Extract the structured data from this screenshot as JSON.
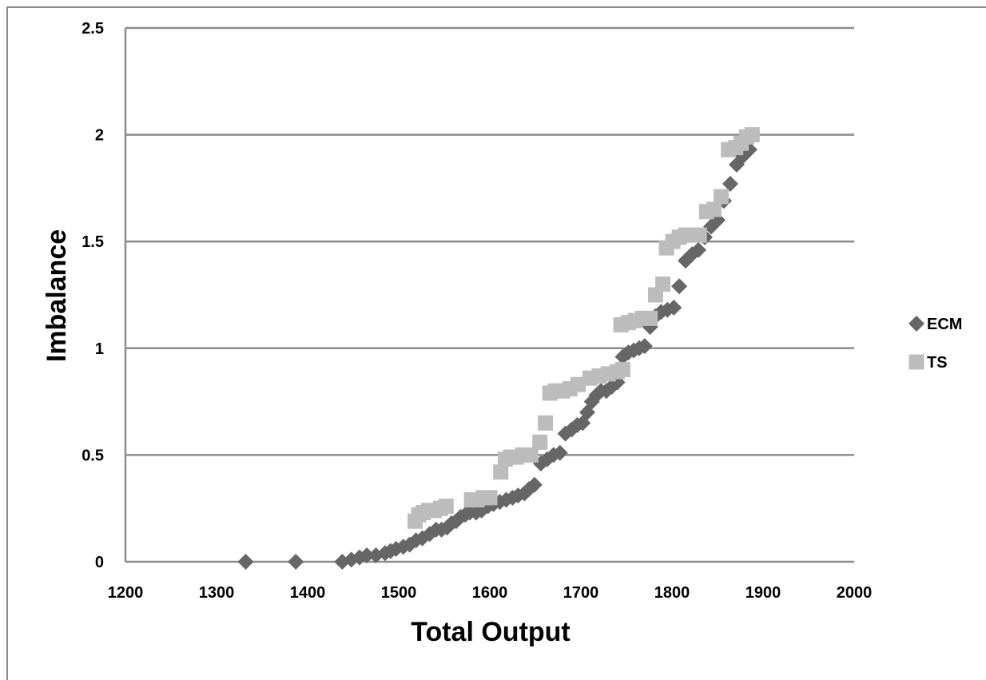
{
  "chart_data": {
    "type": "scatter",
    "title": "",
    "xlabel": "Total Output",
    "ylabel": "Imbalance",
    "xlim": [
      1200,
      2000
    ],
    "ylim": [
      0,
      2.5
    ],
    "x_ticks": [
      "1200",
      "1300",
      "1400",
      "1500",
      "1600",
      "1700",
      "1800",
      "1900",
      "2000"
    ],
    "y_ticks": [
      "0",
      "0.5",
      "1",
      "1.5",
      "2",
      "2.5"
    ],
    "grid": "horizontal",
    "legend_position": "right",
    "series": [
      {
        "name": "ECM",
        "marker": "diamond",
        "color": "#666666",
        "points": [
          [
            1332,
            0
          ],
          [
            1387,
            0
          ],
          [
            1438,
            0
          ],
          [
            1448,
            0.01
          ],
          [
            1457,
            0.02
          ],
          [
            1465,
            0.03
          ],
          [
            1475,
            0.03
          ],
          [
            1485,
            0.04
          ],
          [
            1491,
            0.05
          ],
          [
            1497,
            0.06
          ],
          [
            1505,
            0.07
          ],
          [
            1512,
            0.08
          ],
          [
            1519,
            0.1
          ],
          [
            1526,
            0.11
          ],
          [
            1534,
            0.13
          ],
          [
            1541,
            0.15
          ],
          [
            1547,
            0.15
          ],
          [
            1553,
            0.16
          ],
          [
            1558,
            0.18
          ],
          [
            1563,
            0.19
          ],
          [
            1568,
            0.21
          ],
          [
            1573,
            0.22
          ],
          [
            1578,
            0.23
          ],
          [
            1585,
            0.23
          ],
          [
            1591,
            0.24
          ],
          [
            1598,
            0.26
          ],
          [
            1604,
            0.27
          ],
          [
            1611,
            0.28
          ],
          [
            1618,
            0.29
          ],
          [
            1625,
            0.3
          ],
          [
            1631,
            0.31
          ],
          [
            1638,
            0.32
          ],
          [
            1643,
            0.34
          ],
          [
            1649,
            0.36
          ],
          [
            1656,
            0.46
          ],
          [
            1663,
            0.48
          ],
          [
            1670,
            0.5
          ],
          [
            1677,
            0.51
          ],
          [
            1683,
            0.6
          ],
          [
            1690,
            0.62
          ],
          [
            1696,
            0.64
          ],
          [
            1702,
            0.65
          ],
          [
            1707,
            0.7
          ],
          [
            1712,
            0.75
          ],
          [
            1717,
            0.78
          ],
          [
            1722,
            0.8
          ],
          [
            1728,
            0.8
          ],
          [
            1734,
            0.82
          ],
          [
            1740,
            0.84
          ],
          [
            1746,
            0.96
          ],
          [
            1752,
            0.98
          ],
          [
            1758,
            0.99
          ],
          [
            1764,
            1.0
          ],
          [
            1770,
            1.01
          ],
          [
            1776,
            1.1
          ],
          [
            1782,
            1.15
          ],
          [
            1788,
            1.17
          ],
          [
            1795,
            1.18
          ],
          [
            1802,
            1.19
          ],
          [
            1808,
            1.29
          ],
          [
            1815,
            1.41
          ],
          [
            1822,
            1.44
          ],
          [
            1829,
            1.46
          ],
          [
            1836,
            1.52
          ],
          [
            1843,
            1.57
          ],
          [
            1850,
            1.6
          ],
          [
            1857,
            1.69
          ],
          [
            1864,
            1.77
          ],
          [
            1871,
            1.86
          ],
          [
            1878,
            1.9
          ],
          [
            1885,
            1.93
          ]
        ]
      },
      {
        "name": "TS",
        "marker": "square",
        "color": "#bcbcbc",
        "points": [
          [
            1518,
            0.19
          ],
          [
            1522,
            0.22
          ],
          [
            1527,
            0.23
          ],
          [
            1533,
            0.24
          ],
          [
            1539,
            0.24
          ],
          [
            1546,
            0.25
          ],
          [
            1552,
            0.26
          ],
          [
            1580,
            0.29
          ],
          [
            1586,
            0.29
          ],
          [
            1593,
            0.3
          ],
          [
            1600,
            0.3
          ],
          [
            1612,
            0.42
          ],
          [
            1617,
            0.48
          ],
          [
            1623,
            0.49
          ],
          [
            1629,
            0.49
          ],
          [
            1636,
            0.5
          ],
          [
            1645,
            0.5
          ],
          [
            1655,
            0.56
          ],
          [
            1661,
            0.65
          ],
          [
            1666,
            0.79
          ],
          [
            1672,
            0.8
          ],
          [
            1680,
            0.8
          ],
          [
            1688,
            0.81
          ],
          [
            1697,
            0.83
          ],
          [
            1710,
            0.86
          ],
          [
            1720,
            0.87
          ],
          [
            1730,
            0.88
          ],
          [
            1740,
            0.89
          ],
          [
            1746,
            0.9
          ],
          [
            1744,
            1.11
          ],
          [
            1752,
            1.12
          ],
          [
            1760,
            1.13
          ],
          [
            1768,
            1.14
          ],
          [
            1776,
            1.14
          ],
          [
            1782,
            1.25
          ],
          [
            1790,
            1.3
          ],
          [
            1794,
            1.47
          ],
          [
            1801,
            1.5
          ],
          [
            1808,
            1.52
          ],
          [
            1815,
            1.53
          ],
          [
            1830,
            1.53
          ],
          [
            1838,
            1.64
          ],
          [
            1846,
            1.65
          ],
          [
            1854,
            1.71
          ],
          [
            1862,
            1.93
          ],
          [
            1870,
            1.94
          ],
          [
            1876,
            1.96
          ],
          [
            1882,
            1.99
          ],
          [
            1888,
            2.0
          ]
        ]
      }
    ]
  }
}
